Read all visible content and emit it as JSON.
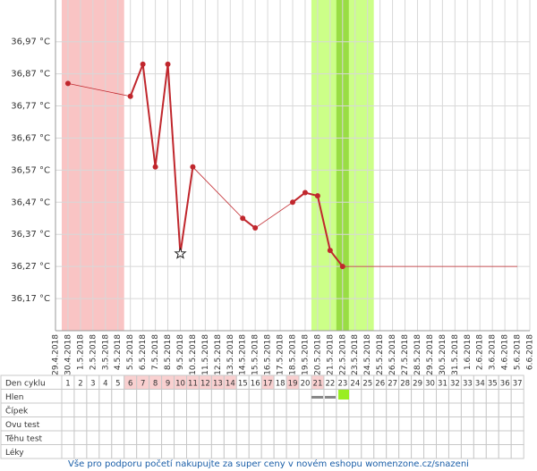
{
  "chart_data": {
    "type": "line",
    "color": "#c0272d",
    "categories": [
      "29.4.2018",
      "30.4.2018",
      "1.5.2018",
      "2.5.2018",
      "3.5.2018",
      "4.5.2018",
      "5.5.2018",
      "6.5.2018",
      "7.5.2018",
      "8.5.2018",
      "9.5.2018",
      "10.5.2018",
      "11.5.2018",
      "12.5.2018",
      "13.5.2018",
      "14.5.2018",
      "15.5.2018",
      "16.5.2018",
      "17.5.2018",
      "18.5.2018",
      "19.5.2018",
      "20.5.2018",
      "21.5.2018",
      "22.5.2018",
      "23.5.2018",
      "24.5.2018",
      "25.5.2018",
      "26.5.2018",
      "27.5.2018",
      "28.5.2018",
      "29.5.2018",
      "30.5.2018",
      "31.5.2018",
      "1.6.2018",
      "2.6.2018",
      "3.6.2018",
      "4.6.2018",
      "5.6.2018",
      "6.6.2018"
    ],
    "values": [
      null,
      36.84,
      null,
      null,
      null,
      null,
      36.8,
      36.9,
      36.58,
      36.9,
      36.31,
      36.58,
      null,
      null,
      null,
      36.42,
      36.39,
      null,
      null,
      36.47,
      36.5,
      36.49,
      36.32,
      36.27,
      null,
      null,
      null,
      null,
      null,
      null,
      null,
      null,
      null,
      null,
      null,
      null,
      null,
      null,
      null
    ],
    "star_point": 10,
    "ylim": [
      36.07,
      37.1
    ],
    "yticks": [
      {
        "value": 36.17,
        "label": "36,17 °C"
      },
      {
        "value": 36.27,
        "label": "36,27 °C"
      },
      {
        "value": 36.37,
        "label": "36,37 °C"
      },
      {
        "value": 36.47,
        "label": "36,47 °C"
      },
      {
        "value": 36.57,
        "label": "36,57 °C"
      },
      {
        "value": 36.67,
        "label": "36,67 °C"
      },
      {
        "value": 36.77,
        "label": "36,77 °C"
      },
      {
        "value": 36.87,
        "label": "36,87 °C"
      },
      {
        "value": 36.97,
        "label": "36,97 °C"
      }
    ],
    "grid": true,
    "shaded": [
      {
        "from": 1,
        "to": 5,
        "color": "#f9c4c4"
      },
      {
        "from": 21,
        "to": 25,
        "color": "#ccff88"
      },
      {
        "from": 23,
        "to": 23,
        "color": "#99dd44"
      }
    ]
  },
  "table": {
    "row_labels": [
      "Den cyklu",
      "Hlen",
      "Čípek",
      "Ovu test",
      "Těhu test",
      "Léky"
    ],
    "days": [
      1,
      2,
      3,
      4,
      5,
      6,
      7,
      8,
      9,
      10,
      11,
      12,
      13,
      14,
      15,
      16,
      17,
      18,
      19,
      20,
      21,
      22,
      23,
      24,
      25,
      26,
      27,
      28,
      29,
      30,
      31,
      32,
      33,
      34,
      35,
      36,
      37
    ],
    "highlighted": [
      6,
      7,
      8,
      9,
      10,
      11,
      12,
      13,
      14,
      17,
      19,
      21
    ]
  },
  "footer": "Vše pro podporu početí nakupujte za super ceny v novém eshopu womenzone.cz/snazeni"
}
